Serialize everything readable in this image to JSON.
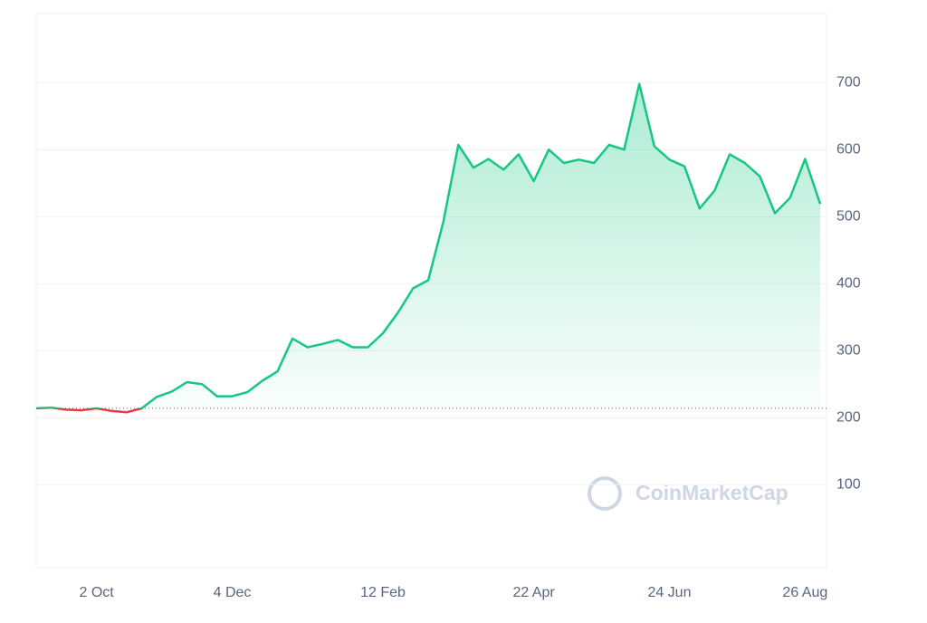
{
  "chart_data": {
    "type": "line",
    "watermark": "CoinMarketCap",
    "categories": [
      null,
      null,
      null,
      null,
      "2 Oct",
      null,
      null,
      null,
      null,
      null,
      null,
      null,
      null,
      "4 Dec",
      null,
      null,
      null,
      null,
      null,
      null,
      null,
      null,
      null,
      "12 Feb",
      null,
      null,
      null,
      null,
      null,
      null,
      null,
      null,
      null,
      "22 Apr",
      null,
      null,
      null,
      null,
      null,
      null,
      null,
      null,
      "24 Jun",
      null,
      null,
      null,
      null,
      null,
      null,
      null,
      null,
      "26 Aug",
      null
    ],
    "series": [
      {
        "color": "#16c784",
        "negative_color": "#ea3943",
        "values": [
          214,
          215,
          212,
          211,
          214,
          210,
          208,
          214,
          231,
          239,
          253,
          250,
          232,
          232,
          238,
          255,
          269,
          318,
          305,
          310,
          316,
          305,
          305,
          326,
          357,
          393,
          405,
          492,
          607,
          573,
          586,
          570,
          593,
          553,
          600,
          580,
          585,
          580,
          607,
          600,
          698,
          605,
          585,
          575,
          512,
          539,
          593,
          580,
          560,
          505,
          528,
          586,
          519
        ]
      }
    ],
    "ylim": [
      -24,
      803
    ],
    "yticks": [
      100,
      200,
      300,
      400,
      500,
      600,
      700
    ],
    "grid": true
  }
}
